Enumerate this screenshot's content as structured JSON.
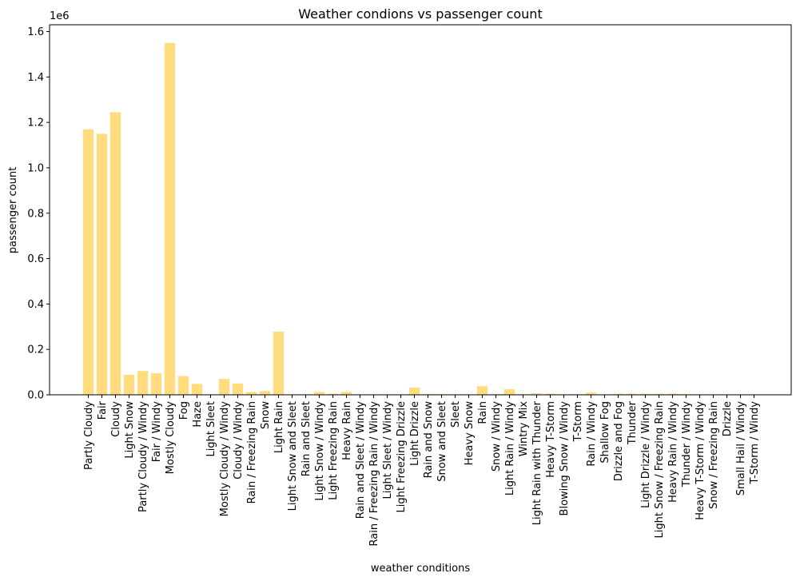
{
  "chart_data": {
    "type": "bar",
    "title": "Weather condions vs passenger count",
    "xlabel": "weather conditions",
    "ylabel": "passenger count",
    "y_multiplier_label": "1e6",
    "ylim": [
      0,
      1.63
    ],
    "yticks": [
      0.0,
      0.2,
      0.4,
      0.6,
      0.8,
      1.0,
      1.2,
      1.4,
      1.6
    ],
    "ytick_labels": [
      "0.0",
      "0.2",
      "0.4",
      "0.6",
      "0.8",
      "1.0",
      "1.2",
      "1.4",
      "1.6"
    ],
    "bar_color": "#ffdd7f",
    "grid": false,
    "categories": [
      "Partly Cloudy",
      "Fair",
      "Cloudy",
      "Light Snow",
      "Partly Cloudy / Windy",
      "Fair / Windy",
      "Mostly Cloudy",
      "Fog",
      "Haze",
      "Light Sleet",
      "Mostly Cloudy / Windy",
      "Cloudy / Windy",
      "Rain / Freezing Rain",
      "Snow",
      "Light Rain",
      "Light Snow and Sleet",
      "Rain and Sleet",
      "Light Snow / Windy",
      "Light Freezing Rain",
      "Heavy Rain",
      "Rain and Sleet / Windy",
      "Rain / Freezing Rain / Windy",
      "Light Sleet / Windy",
      "Light Freezing Drizzle",
      "Light Drizzle",
      "Rain and Snow",
      "Snow and Sleet",
      "Sleet",
      "Heavy Snow",
      "Rain",
      "Snow / Windy",
      "Light Rain / Windy",
      "Wintry Mix",
      "Light Rain with Thunder",
      "Heavy T-Storm",
      "Blowing Snow / Windy",
      "T-Storm",
      "Rain / Windy",
      "Shallow Fog",
      "Drizzle and Fog",
      "Thunder",
      "Light Drizzle / Windy",
      "Light Snow / Freezing Rain",
      "Heavy Rain / Windy",
      "Thunder / Windy",
      "Heavy T-Storm / Windy",
      "Snow / Freezing Rain",
      "Drizzle",
      "Small Hail / Windy",
      "T-Storm / Windy"
    ],
    "values": [
      1.17,
      1.15,
      1.245,
      0.088,
      0.105,
      0.095,
      1.55,
      0.082,
      0.048,
      0.002,
      0.07,
      0.05,
      0.012,
      0.017,
      0.278,
      0.002,
      0.002,
      0.013,
      0.005,
      0.013,
      0.002,
      0.002,
      0.001,
      0.002,
      0.032,
      0.003,
      0.003,
      0.001,
      0.002,
      0.038,
      0.003,
      0.025,
      0.003,
      0.006,
      0.005,
      0.002,
      0.003,
      0.01,
      0.002,
      0.004,
      0.005,
      0.004,
      0.004,
      0.005,
      0.003,
      0.002,
      0.002,
      0.001,
      0.001,
      0.001
    ]
  }
}
